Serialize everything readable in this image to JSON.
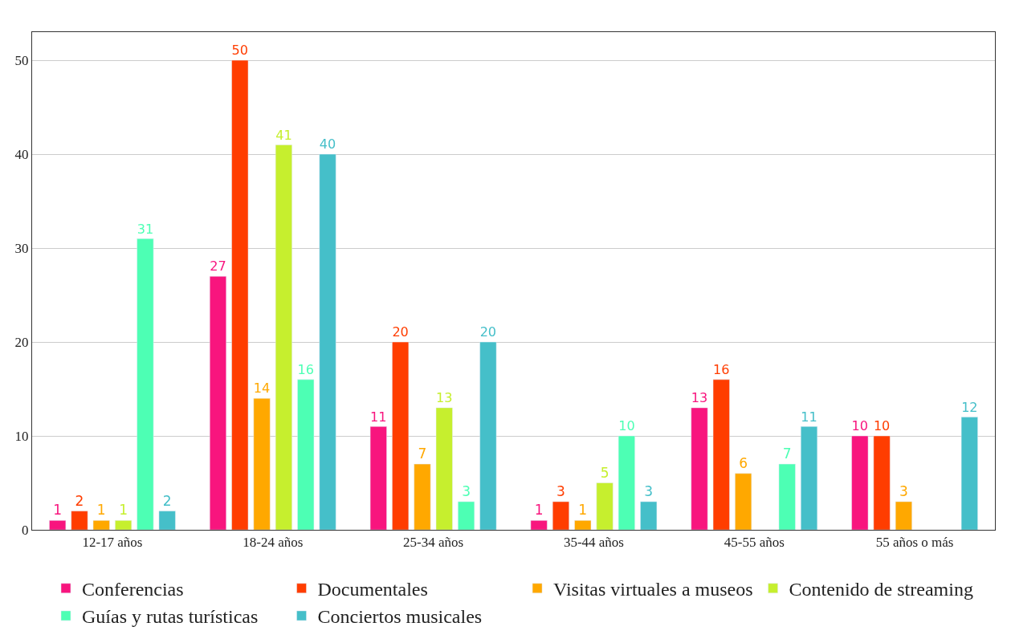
{
  "chart_data": {
    "type": "bar",
    "categories": [
      "12-17 años",
      "18-24 años",
      "25-34 años",
      "35-44 años",
      "45-55 años",
      "55 años o más"
    ],
    "series": [
      {
        "name": "Conferencias",
        "color": "#f8157e",
        "values": [
          1,
          27,
          11,
          1,
          13,
          10
        ]
      },
      {
        "name": "Documentales",
        "color": "#ff3d00",
        "values": [
          2,
          50,
          20,
          3,
          16,
          10
        ]
      },
      {
        "name": "Visitas virtuales a museos",
        "color": "#ffa800",
        "values": [
          1,
          14,
          7,
          1,
          6,
          3
        ]
      },
      {
        "name": "Contenido de streaming",
        "color": "#c6ef2e",
        "values": [
          1,
          41,
          13,
          5,
          null,
          null
        ]
      },
      {
        "name": "Guías y rutas turísticas",
        "color": "#4dffb4",
        "values": [
          31,
          16,
          3,
          10,
          7,
          null
        ]
      },
      {
        "name": "Conciertos musicales",
        "color": "#45bfc9",
        "values": [
          2,
          40,
          20,
          3,
          11,
          12
        ]
      }
    ],
    "ylim": [
      0,
      53
    ],
    "yticks": [
      0,
      10,
      20,
      30,
      40,
      50
    ],
    "grid": "y",
    "legend": "bottom",
    "data_labels": true
  }
}
